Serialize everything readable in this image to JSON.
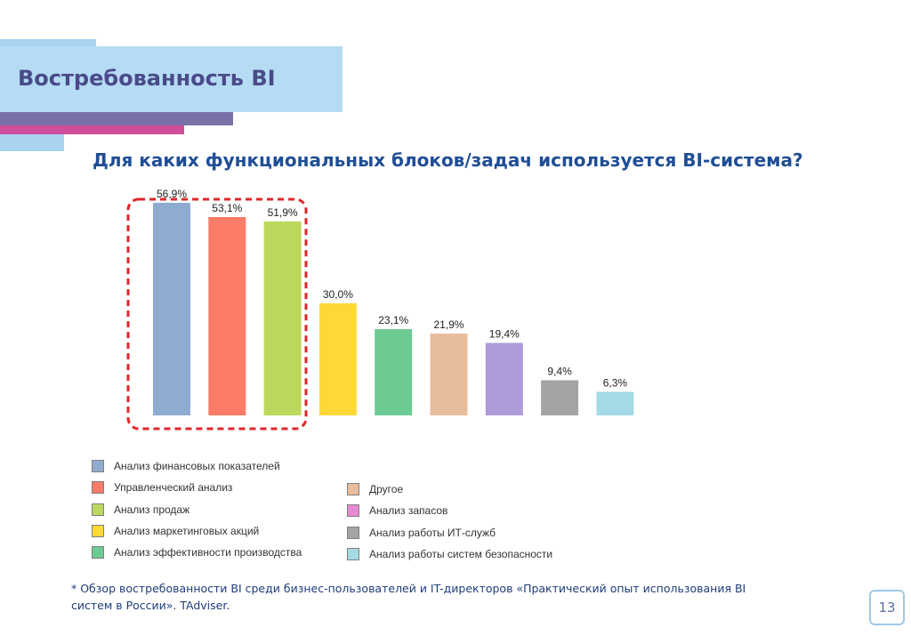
{
  "slide": {
    "title": "Востребованность BI",
    "subtitle": "Для каких функциональных блоков/задач используется BI-система?",
    "footnote": "* Обзор востребованности BI среди бизнес-пользователей и IT-директоров «Практический опыт использования BI систем в России». TAdviser.",
    "page_number": "13"
  },
  "colors": {
    "accent_purple": "#7a71a8",
    "accent_pink": "#cf4d9b",
    "accent_light_blue": "#b5dcf4",
    "highlight_dashed": "#e0262b"
  },
  "chart_data": {
    "type": "bar",
    "title": "Для каких функциональных блоков/задач используется BI-система?",
    "xlabel": "",
    "ylabel": "",
    "ylim": [
      0,
      60
    ],
    "grid": false,
    "legend_position": "bottom",
    "categories": [
      "Анализ финансовых показателей",
      "Управленческий анализ",
      "Анализ продаж",
      "Анализ маркетинговых акций",
      "Анализ эффективности производства",
      "Другое",
      "Анализ запасов",
      "Анализ работы ИТ-служб",
      "Анализ работы систем безопасности"
    ],
    "values": [
      56.9,
      53.1,
      51.9,
      30.0,
      23.1,
      21.9,
      19.4,
      9.4,
      6.3
    ],
    "value_labels": [
      "56,9%",
      "53,1%",
      "51,9%",
      "30,0%",
      "23,1%",
      "21,9%",
      "19,4%",
      "9,4%",
      "6,3%"
    ],
    "colors": [
      "#8eaccf",
      "#fa7b67",
      "#bcd85c",
      "#fcd937",
      "#6ccb93",
      "#e8bd9c",
      "#ae9bd9",
      "#a4a4a4",
      "#a6d9e6"
    ],
    "legend_colors": [
      "#8eaccf",
      "#fa7b67",
      "#bcd85c",
      "#fcd937",
      "#6ccb93",
      "#e8bd9c",
      "#e58ad2",
      "#a4a4a4",
      "#a6d9e6"
    ],
    "highlighted_categories": [
      "Анализ финансовых показателей",
      "Управленческий анализ",
      "Анализ продаж"
    ]
  }
}
